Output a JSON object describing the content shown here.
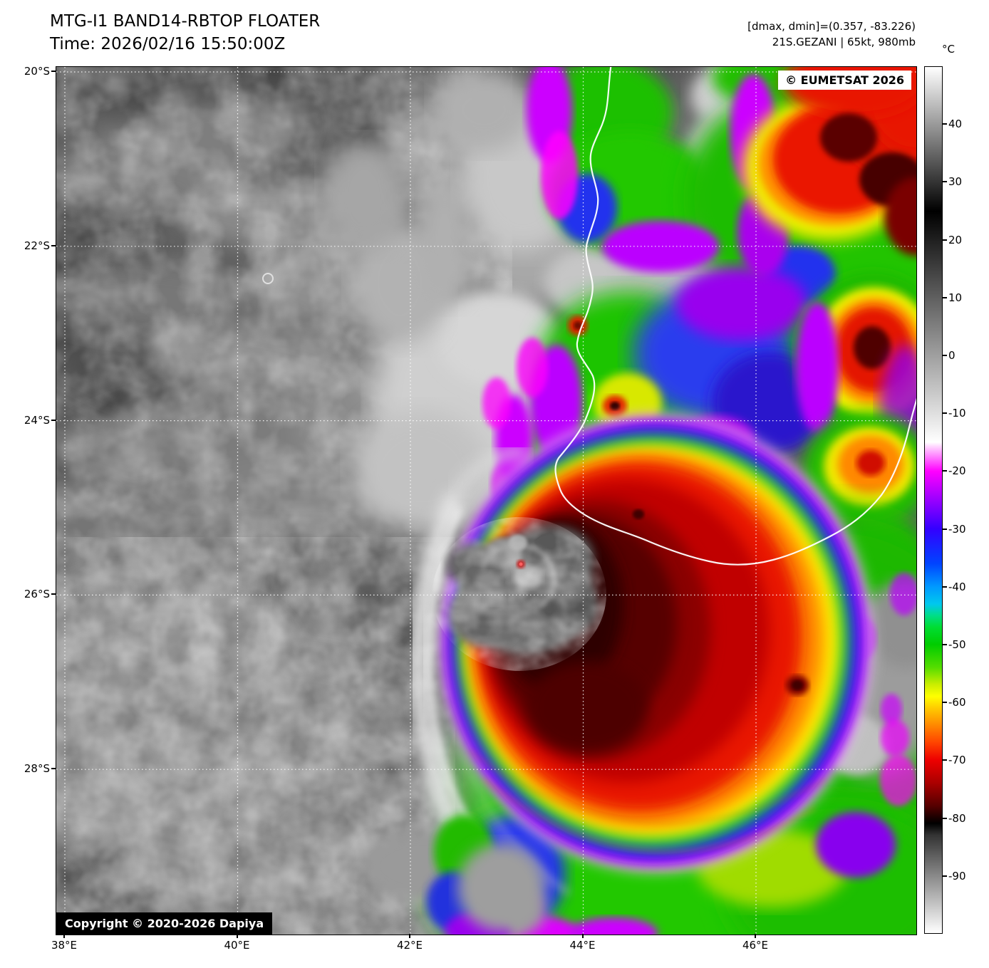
{
  "header": {
    "title": "MTG-I1 BAND14-RBTOP FLOATER",
    "time": "Time: 2026/02/16 15:50:00Z",
    "dmax_dmin": "[dmax, dmin]=(0.357, -83.226)",
    "storm": "21S.GEZANI | 65kt, 980mb"
  },
  "overlays": {
    "provider": "© EUMETSAT 2026",
    "copyright": "Copyright © 2020-2026 Dapiya"
  },
  "colorbar": {
    "unit": "°C",
    "range": [
      50,
      -100
    ],
    "ticks": [
      40,
      30,
      20,
      10,
      0,
      -10,
      -20,
      -30,
      -40,
      -50,
      -60,
      -70,
      -80,
      -90
    ],
    "stops": [
      [
        50,
        "#ffffff"
      ],
      [
        25,
        "#000000"
      ],
      [
        -15,
        "#ffffff"
      ],
      [
        -16,
        "#ffc8ff"
      ],
      [
        -20,
        "#ff00ff"
      ],
      [
        -25,
        "#9900ff"
      ],
      [
        -30,
        "#3300ff"
      ],
      [
        -36,
        "#0044ff"
      ],
      [
        -40,
        "#0099ff"
      ],
      [
        -43,
        "#00c8ee"
      ],
      [
        -45,
        "#00dd88"
      ],
      [
        -47,
        "#00dd33"
      ],
      [
        -50,
        "#00cc00"
      ],
      [
        -54,
        "#55dd00"
      ],
      [
        -57,
        "#ccee00"
      ],
      [
        -59,
        "#ffff00"
      ],
      [
        -61,
        "#ffcc00"
      ],
      [
        -64,
        "#ff8800"
      ],
      [
        -67,
        "#ff4400"
      ],
      [
        -70,
        "#ee0000"
      ],
      [
        -74,
        "#aa0000"
      ],
      [
        -78,
        "#550000"
      ],
      [
        -80,
        "#1a0000"
      ],
      [
        -81,
        "#000000"
      ],
      [
        -83,
        "#333333"
      ],
      [
        -90,
        "#888888"
      ],
      [
        -100,
        "#ffffff"
      ]
    ]
  },
  "axes": {
    "lat_labels": [
      "20°S",
      "22°S",
      "24°S",
      "26°S",
      "28°S"
    ],
    "lon_labels": [
      "38°E",
      "40°E",
      "42°E",
      "44°E",
      "46°E"
    ]
  }
}
